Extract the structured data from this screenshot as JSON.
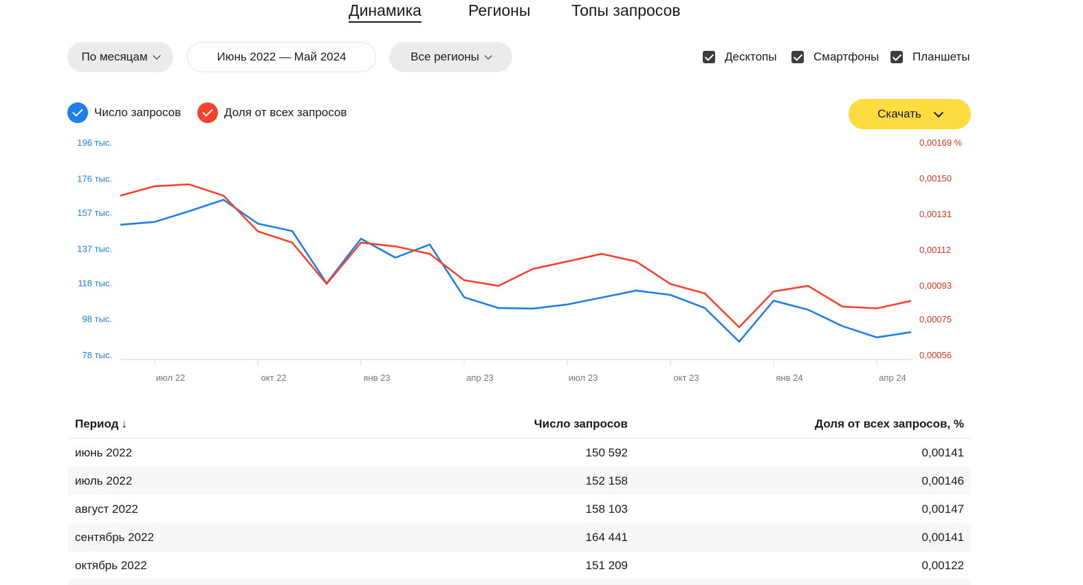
{
  "tabs": [
    {
      "label": "Динамика",
      "active": true
    },
    {
      "label": "Регионы",
      "active": false
    },
    {
      "label": "Топы запросов",
      "active": false
    }
  ],
  "controls": {
    "period_select": "По месяцам",
    "date_range": "Июнь 2022 — Май 2024",
    "region_select": "Все регионы",
    "devices": [
      {
        "label": "Десктопы",
        "checked": true
      },
      {
        "label": "Смартфоны",
        "checked": true
      },
      {
        "label": "Планшеты",
        "checked": true
      }
    ]
  },
  "legend": [
    {
      "label": "Число запросов",
      "color": "#1f7ee8",
      "checked": true
    },
    {
      "label": "Доля от всех запросов",
      "color": "#f5432d",
      "checked": true
    }
  ],
  "download_label": "Скачать",
  "chart_data": {
    "type": "line",
    "x": [
      "июн 22",
      "июл 22",
      "авг 22",
      "сен 22",
      "окт 22",
      "ноя 22",
      "дек 22",
      "янв 23",
      "фев 23",
      "мар 23",
      "апр 23",
      "май 23",
      "июн 23",
      "июл 23",
      "авг 23",
      "сен 23",
      "окт 23",
      "ноя 23",
      "дек 23",
      "янв 24",
      "фев 24",
      "мар 24",
      "апр 24",
      "май 24"
    ],
    "x_tick_labels": [
      "июл 22",
      "окт 22",
      "янв 23",
      "апр 23",
      "июл 23",
      "окт 23",
      "янв 24",
      "апр 24"
    ],
    "x_tick_indices": [
      1,
      4,
      7,
      10,
      13,
      16,
      19,
      22
    ],
    "y_left": {
      "ticks": [
        78,
        98,
        118,
        137,
        157,
        176,
        196
      ],
      "tick_labels": [
        "78 тыс.",
        "98 тыс.",
        "118 тыс.",
        "137 тыс.",
        "157 тыс.",
        "176 тыс.",
        "196 тыс."
      ],
      "range": [
        78,
        196
      ],
      "color": "#1f7ee8"
    },
    "y_right": {
      "ticks": [
        0.00056,
        0.00075,
        0.00093,
        0.00112,
        0.00131,
        0.0015,
        0.00169
      ],
      "tick_labels": [
        "0,00056",
        "0,00075",
        "0,00093",
        "0,00112",
        "0,00131",
        "0,00150",
        "0,00169 %"
      ],
      "range": [
        0.00056,
        0.00169
      ],
      "color": "#e0301e"
    },
    "series": [
      {
        "name": "Число запросов",
        "axis": "left",
        "color": "#1f7ee8",
        "values": [
          150592,
          152158,
          158103,
          164441,
          151209,
          147100,
          118100,
          142800,
          132300,
          139600,
          110300,
          104300,
          104000,
          106300,
          110100,
          114000,
          111600,
          104300,
          85600,
          108400,
          103400,
          94300,
          88000,
          90900
        ]
      },
      {
        "name": "Доля от всех запросов",
        "axis": "right",
        "color": "#f5432d",
        "values": [
          0.00141,
          0.00146,
          0.00147,
          0.00141,
          0.00122,
          0.00116,
          0.00094,
          0.00116,
          0.00114,
          0.0011,
          0.00096,
          0.00093,
          0.00102,
          0.00106,
          0.0011,
          0.00106,
          0.00094,
          0.00089,
          0.00071,
          0.0009,
          0.00093,
          0.00082,
          0.00081,
          0.00085
        ]
      }
    ]
  },
  "table": {
    "headers": {
      "period": "Период",
      "count": "Число запросов",
      "share": "Доля от всех запросов, %"
    },
    "rows": [
      {
        "period": "июнь 2022",
        "count": "150 592",
        "share": "0,00141"
      },
      {
        "period": "июль 2022",
        "count": "152 158",
        "share": "0,00146"
      },
      {
        "period": "август 2022",
        "count": "158 103",
        "share": "0,00147"
      },
      {
        "period": "сентябрь 2022",
        "count": "164 441",
        "share": "0,00141"
      },
      {
        "period": "октябрь 2022",
        "count": "151 209",
        "share": "0,00122"
      }
    ]
  }
}
